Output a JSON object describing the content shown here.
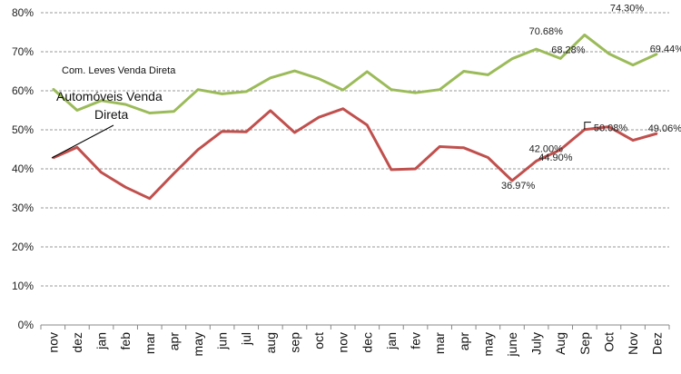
{
  "chart_data": {
    "type": "line",
    "categories": [
      "nov",
      "dez",
      "jan",
      "feb",
      "mar",
      "apr",
      "may",
      "jun",
      "jul",
      "aug",
      "sep",
      "oct",
      "nov",
      "dec",
      "jan",
      "fev",
      "mar",
      "apr",
      "may",
      "june",
      "July",
      "Aug",
      "Sep",
      "Oct",
      "Nov",
      "Dez"
    ],
    "ylim": [
      0,
      80
    ],
    "yticks": [
      "0%",
      "10%",
      "20%",
      "30%",
      "40%",
      "50%",
      "60%",
      "70%",
      "80%"
    ],
    "grid": true,
    "series": [
      {
        "name": "Com. Leves Venda Direta",
        "color": "#9bbb59",
        "values": [
          60.5,
          55.0,
          57.5,
          56.5,
          54.3,
          54.7,
          60.3,
          59.2,
          59.8,
          63.3,
          65.1,
          63.1,
          60.2,
          64.9,
          60.3,
          59.5,
          60.3,
          65.0,
          64.1,
          68.2,
          70.68,
          68.28,
          74.3,
          69.5,
          66.6,
          69.44
        ]
      },
      {
        "name": "Automóveis Venda Direta",
        "color": "#c0504d",
        "values": [
          42.8,
          45.5,
          39.1,
          35.3,
          32.4,
          38.8,
          44.9,
          49.6,
          49.5,
          54.9,
          49.3,
          53.2,
          55.4,
          51.2,
          39.8,
          40.0,
          45.7,
          45.4,
          42.9,
          36.97,
          42.0,
          44.9,
          50.08,
          50.8,
          47.3,
          49.06
        ]
      }
    ],
    "data_labels": [
      {
        "series": 0,
        "index": 20,
        "text": "70.68%"
      },
      {
        "series": 0,
        "index": 21,
        "text": "68.28%"
      },
      {
        "series": 0,
        "index": 22,
        "text": "74.30%"
      },
      {
        "series": 0,
        "index": 25,
        "text": "69.44%"
      },
      {
        "series": 1,
        "index": 19,
        "text": "36.97%"
      },
      {
        "series": 1,
        "index": 20,
        "text": "42.00%"
      },
      {
        "series": 1,
        "index": 21,
        "text": "44.90%"
      },
      {
        "series": 1,
        "index": 22,
        "text": "50.08%"
      },
      {
        "series": 1,
        "index": 25,
        "text": "49.06%"
      }
    ],
    "annotations": {
      "green_label": "Com. Leves Venda Direta",
      "red_label_line1": "Automóveis Venda",
      "red_label_line2": "Direta"
    }
  }
}
